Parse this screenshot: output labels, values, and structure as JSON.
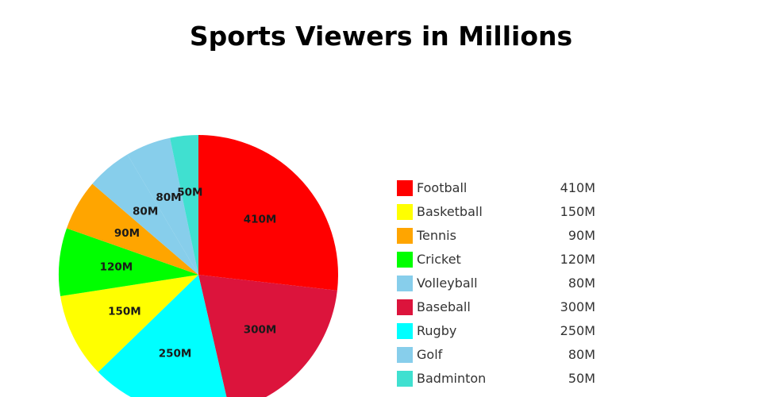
{
  "chart_data": {
    "type": "pie",
    "title": "Sports Viewers in Millions",
    "categories": [
      "Football",
      "Basketball",
      "Tennis",
      "Cricket",
      "Volleyball",
      "Baseball",
      "Rugby",
      "Golf",
      "Badminton"
    ],
    "values": [
      410,
      150,
      90,
      120,
      80,
      300,
      250,
      80,
      50
    ],
    "value_labels": [
      "410M",
      "150M",
      "90M",
      "120M",
      "80M",
      "300M",
      "250M",
      "80M",
      "50M"
    ],
    "colors": [
      "#ff0000",
      "#ffff00",
      "#ffa500",
      "#00ff00",
      "#87ceeb",
      "#dc143c",
      "#00ffff",
      "#87ceeb",
      "#40e0d0"
    ],
    "pie_order": [
      "Football",
      "Baseball",
      "Rugby",
      "Basketball",
      "Cricket",
      "Tennis",
      "Volleyball",
      "Golf",
      "Badminton"
    ],
    "direction": "clockwise",
    "start": "top",
    "legend_placement": "right"
  }
}
